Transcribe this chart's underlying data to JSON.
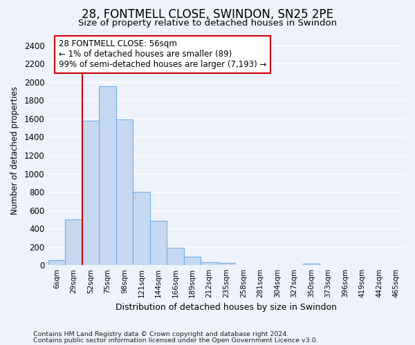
{
  "title": "28, FONTMELL CLOSE, SWINDON, SN25 2PE",
  "subtitle": "Size of property relative to detached houses in Swindon",
  "xlabel": "Distribution of detached houses by size in Swindon",
  "ylabel": "Number of detached properties",
  "bar_categories": [
    "6sqm",
    "29sqm",
    "52sqm",
    "75sqm",
    "98sqm",
    "121sqm",
    "144sqm",
    "166sqm",
    "189sqm",
    "212sqm",
    "235sqm",
    "258sqm",
    "281sqm",
    "304sqm",
    "327sqm",
    "350sqm",
    "373sqm",
    "396sqm",
    "419sqm",
    "442sqm",
    "465sqm"
  ],
  "bar_values": [
    55,
    500,
    1580,
    1950,
    1590,
    800,
    480,
    190,
    90,
    35,
    25,
    0,
    0,
    0,
    0,
    20,
    0,
    0,
    0,
    0,
    0
  ],
  "bar_color": "#c5d8f0",
  "bar_edge_color": "#6aaee8",
  "marker_color": "#cc0000",
  "ylim": [
    0,
    2500
  ],
  "yticks": [
    0,
    200,
    400,
    600,
    800,
    1000,
    1200,
    1400,
    1600,
    1800,
    2000,
    2200,
    2400
  ],
  "annotation_line1": "28 FONTMELL CLOSE: 56sqm",
  "annotation_line2": "← 1% of detached houses are smaller (89)",
  "annotation_line3": "99% of semi-detached houses are larger (7,193) →",
  "annotation_box_color": "#ffffff",
  "annotation_box_edge": "#cc0000",
  "footer1": "Contains HM Land Registry data © Crown copyright and database right 2024.",
  "footer2": "Contains public sector information licensed under the Open Government Licence v3.0.",
  "bg_color": "#eef2fa",
  "grid_color": "#ffffff",
  "title_fontsize": 12,
  "subtitle_fontsize": 9.5
}
